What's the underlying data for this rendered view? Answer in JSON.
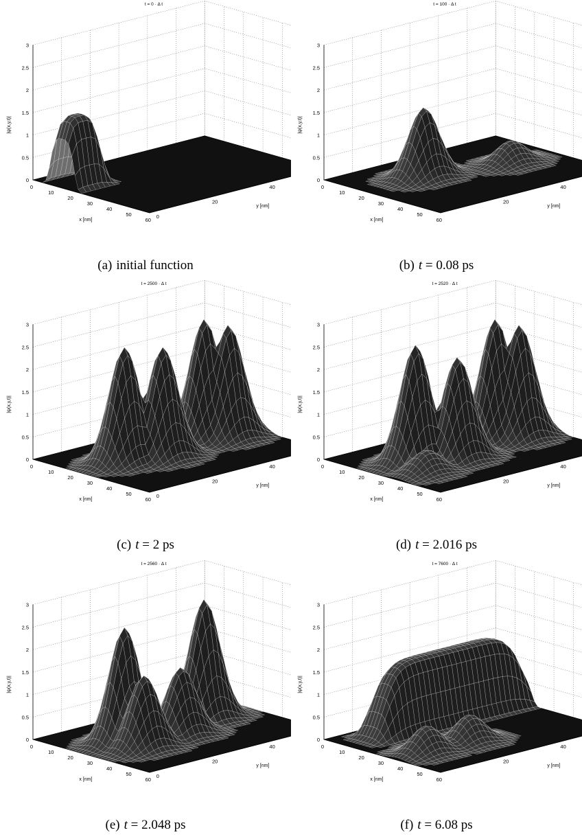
{
  "chart_data": [
    {
      "type": "surface",
      "title": "t = 0 · Δ t",
      "xlabel": "x [nm]",
      "ylabel": "y [nm]",
      "zlabel": "|ψ(x,y,t)|",
      "xlim": [
        0,
        60
      ],
      "ylim": [
        0,
        60
      ],
      "zlim": [
        0,
        3
      ],
      "xticks": [
        "0",
        "10",
        "20",
        "30",
        "40",
        "50",
        "60"
      ],
      "yticks": [
        "0",
        "20",
        "40",
        "60"
      ],
      "zticks": [
        "0",
        "0.5",
        "1",
        "1.5",
        "2",
        "2.5",
        "3"
      ],
      "caption_tag": "(a)",
      "caption": "initial function",
      "caption_math": "",
      "grid": true,
      "peaks": [
        {
          "x": 15,
          "y": 5,
          "height": 1.55,
          "shape": "flat-top wave packet"
        }
      ]
    },
    {
      "type": "surface",
      "title": "t = 100 · Δ t",
      "xlabel": "x [nm]",
      "ylabel": "y [nm]",
      "zlabel": "|ψ(x,y,t)|",
      "xlim": [
        0,
        60
      ],
      "ylim": [
        0,
        60
      ],
      "zlim": [
        0,
        3
      ],
      "xticks": [
        "0",
        "10",
        "20",
        "30",
        "40",
        "50",
        "60"
      ],
      "yticks": [
        "20",
        "40",
        "60"
      ],
      "zticks": [
        "0",
        "0.5",
        "1",
        "1.5",
        "2",
        "2.5",
        "3"
      ],
      "caption_tag": "(b)",
      "caption": "",
      "caption_math": "t = 0.08 ps",
      "grid": true,
      "peaks": [
        {
          "x": 22,
          "y": 20,
          "height": 1.55
        },
        {
          "x": 30,
          "y": 45,
          "height": 0.5
        }
      ]
    },
    {
      "type": "surface",
      "title": "t = 2500 · Δ t",
      "xlabel": "x [nm]",
      "ylabel": "y [nm]",
      "zlabel": "|ψ(x,y,t)|",
      "xlim": [
        0,
        60
      ],
      "ylim": [
        0,
        60
      ],
      "zlim": [
        0,
        3
      ],
      "xticks": [
        "0",
        "10",
        "20",
        "30",
        "40",
        "50",
        "60"
      ],
      "yticks": [
        "0",
        "20",
        "40",
        "60"
      ],
      "zticks": [
        "0",
        "0.5",
        "1",
        "1.5",
        "2",
        "2.5",
        "3"
      ],
      "caption_tag": "(c)",
      "caption": "",
      "caption_math": "t = 2 ps",
      "grid": true,
      "peaks": [
        {
          "x": 25,
          "y": 15,
          "height": 2.55
        },
        {
          "x": 30,
          "y": 25,
          "height": 2.45
        },
        {
          "x": 22,
          "y": 45,
          "height": 2.65
        },
        {
          "x": 27,
          "y": 50,
          "height": 2.5
        }
      ]
    },
    {
      "type": "surface",
      "title": "t = 2520 · Δ t",
      "xlabel": "x [nm]",
      "ylabel": "y [nm]",
      "zlabel": "|ψ(x,y,t)|",
      "xlim": [
        0,
        60
      ],
      "ylim": [
        0,
        60
      ],
      "zlim": [
        0,
        3
      ],
      "xticks": [
        "0",
        "10",
        "20",
        "30",
        "40",
        "50",
        "60"
      ],
      "yticks": [
        "20",
        "40",
        "60"
      ],
      "zticks": [
        "0",
        "0.5",
        "1",
        "1.5",
        "2",
        "2.5",
        "3"
      ],
      "caption_tag": "(d)",
      "caption": "",
      "caption_math": "t = 2.016 ps",
      "grid": true,
      "peaks": [
        {
          "x": 25,
          "y": 15,
          "height": 2.6
        },
        {
          "x": 32,
          "y": 25,
          "height": 2.25
        },
        {
          "x": 22,
          "y": 45,
          "height": 2.65
        },
        {
          "x": 27,
          "y": 50,
          "height": 2.5
        },
        {
          "x": 38,
          "y": 10,
          "height": 0.5
        }
      ]
    },
    {
      "type": "surface",
      "title": "t = 2560 · Δ t",
      "xlabel": "x [nm]",
      "ylabel": "y [nm]",
      "zlabel": "|ψ(x,y,t)|",
      "xlim": [
        0,
        60
      ],
      "ylim": [
        0,
        60
      ],
      "zlim": [
        0,
        3
      ],
      "xticks": [
        "0",
        "10",
        "20",
        "30",
        "40",
        "50",
        "60"
      ],
      "yticks": [
        "0",
        "20",
        "40",
        "60"
      ],
      "zticks": [
        "0",
        "0.5",
        "1",
        "1.5",
        "2",
        "2.5",
        "3"
      ],
      "caption_tag": "(e)",
      "caption": "",
      "caption_math": "t = 2.048 ps",
      "grid": true,
      "peaks": [
        {
          "x": 25,
          "y": 15,
          "height": 2.55
        },
        {
          "x": 35,
          "y": 15,
          "height": 1.6
        },
        {
          "x": 22,
          "y": 45,
          "height": 2.65
        },
        {
          "x": 32,
          "y": 30,
          "height": 1.5
        }
      ]
    },
    {
      "type": "surface",
      "title": "t = 7600 · Δ t",
      "xlabel": "x [nm]",
      "ylabel": "y [nm]",
      "zlabel": "|ψ(x,y,t)|",
      "xlim": [
        0,
        60
      ],
      "ylim": [
        0,
        60
      ],
      "zlim": [
        0,
        3
      ],
      "xticks": [
        "0",
        "10",
        "20",
        "30",
        "40",
        "50",
        "60"
      ],
      "yticks": [
        "20",
        "40",
        "60"
      ],
      "zticks": [
        "0",
        "0.5",
        "1",
        "1.5",
        "2",
        "2.5",
        "3"
      ],
      "caption_tag": "(f)",
      "caption": "",
      "caption_math": "t = 6.08 ps",
      "grid": true,
      "peaks": [
        {
          "x": 12,
          "y": 35,
          "height": 1.6,
          "shape": "flat ridge"
        },
        {
          "x": 38,
          "y": 10,
          "height": 0.6
        },
        {
          "x": 38,
          "y": 25,
          "height": 0.6
        }
      ]
    }
  ]
}
